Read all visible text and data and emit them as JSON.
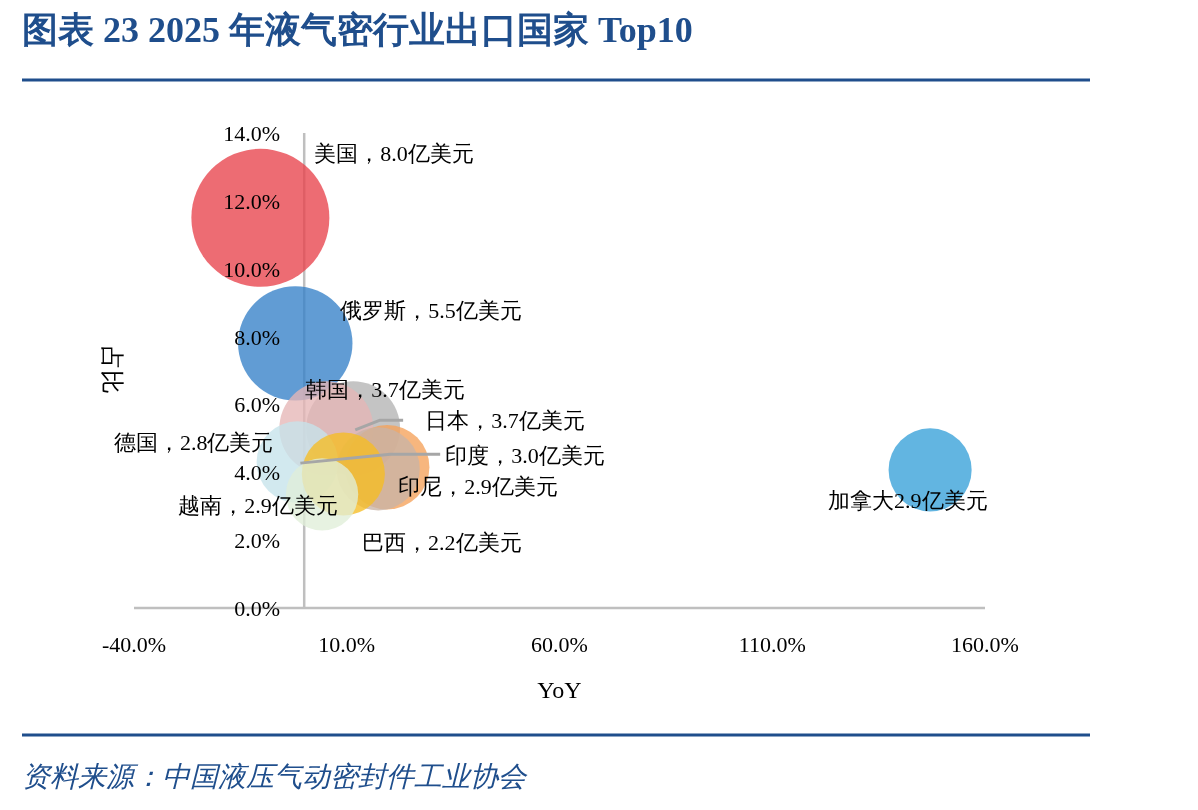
{
  "chart_data": {
    "type": "bubble",
    "title": "图表 23   2025 年液气密行业出口国家 Top10",
    "xlabel": "YoY",
    "ylabel": "占比",
    "annotations": [
      "美国，8.0亿美元",
      "俄罗斯，5.5亿美元",
      {
        "text": "日本，3.7亿美元",
        "x": 12.0,
        "y": 5.25
      },
      "韩国，3.7亿美元",
      {
        "text": "印度，3.0亿美元",
        "x": -0.9,
        "y": 4.27
      },
      "印尼，2.9亿美元",
      "德国，2.8亿美元",
      "越南，2.9亿美元",
      "巴西，2.2亿美元",
      "加拿大2.9亿美元",
      "资料来源：中国液压气动密封件工业协会"
    ],
    "x": [
      -10.3,
      -2.1,
      11.5,
      5.2,
      19.5,
      17.4,
      -1.6,
      9.2,
      4.2,
      147.1
    ],
    "values": [
      11.5,
      7.8,
      5.3,
      5.3,
      4.15,
      4.1,
      4.3,
      3.95,
      3.35,
      4.07
    ],
    "sizes": [
      1,
      0.6875,
      0.4625,
      0.4625,
      0.375,
      0.3625,
      0.35,
      0.3625,
      0.275,
      0.3625
    ],
    "colors": [
      "#e8424c",
      "#3580c8",
      "#b3b3b3",
      "#e6b6b6",
      "#f5a15a",
      "#c9b3a5",
      "#c5e3ea",
      "#f6bd22",
      "#e0eed8",
      "#36a0d8"
    ],
    "xlim": [
      -40,
      160
    ],
    "xticks": [
      {
        "value": -40,
        "label": "-40.0%"
      },
      {
        "value": 10,
        "label": "10.0%"
      },
      {
        "value": 60,
        "label": "60.0%"
      },
      {
        "value": 110,
        "label": "110.0%"
      },
      {
        "value": 160,
        "label": "160.0%"
      }
    ],
    "ylim": [
      0,
      14
    ],
    "yticks": [
      {
        "value": 0,
        "label": "0.0%"
      },
      {
        "value": 2,
        "label": "2.0%"
      },
      {
        "value": 4,
        "label": "4.0%"
      },
      {
        "value": 6,
        "label": "6.0%"
      },
      {
        "value": 8,
        "label": "8.0%"
      },
      {
        "value": 10,
        "label": "10.0%"
      },
      {
        "value": 12,
        "label": "12.0%"
      },
      {
        "value": 14,
        "label": "14.0%"
      }
    ],
    "grid": false
  }
}
